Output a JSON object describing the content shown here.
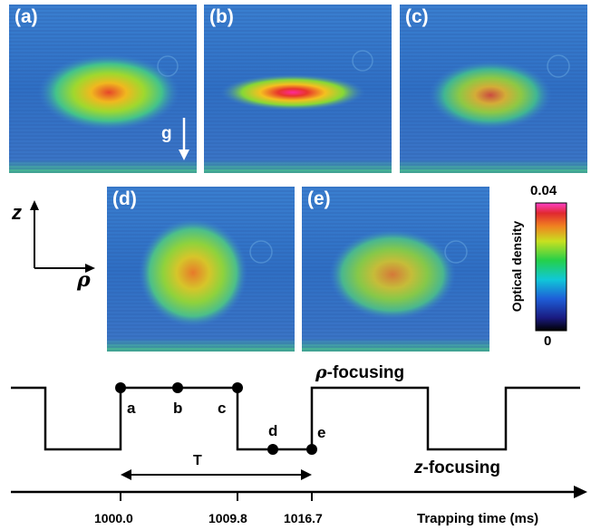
{
  "panels": [
    {
      "label": "(a)"
    },
    {
      "label": "(b)"
    },
    {
      "label": "(c)"
    },
    {
      "label": "(d)"
    },
    {
      "label": "(e)"
    }
  ],
  "gravity_label": "g",
  "axes": {
    "z": "z",
    "rho": "ρ"
  },
  "colorbar": {
    "title": "Optical density",
    "max": "0.04",
    "min": "0"
  },
  "timeline": {
    "rho_focusing_symbol": "ρ",
    "rho_focusing_text": "-focusing",
    "z_focusing_symbol": "z",
    "z_focusing_text": "-focusing",
    "points": [
      "a",
      "b",
      "c",
      "d",
      "e"
    ],
    "period_label": "T",
    "ticks": [
      "1000.0",
      "1009.8",
      "1016.7"
    ],
    "axis_label": "Trapping time (ms)"
  }
}
